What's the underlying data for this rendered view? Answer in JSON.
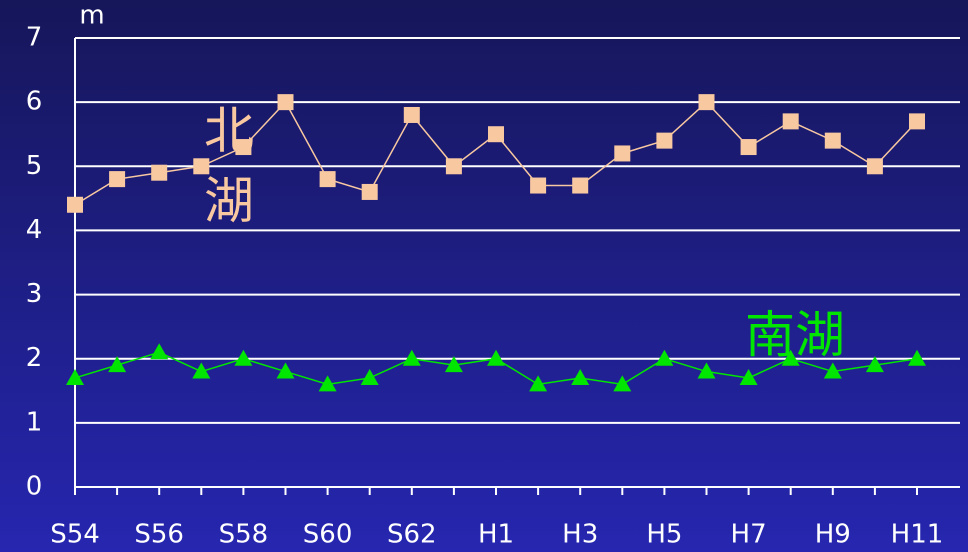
{
  "chart_data": {
    "type": "line",
    "y_label": "m",
    "categories": [
      "S54",
      null,
      "S56",
      null,
      "S58",
      null,
      "S60",
      null,
      "S62",
      null,
      "H1",
      null,
      "H3",
      null,
      "H5",
      null,
      "H7",
      null,
      "H9",
      null,
      "H11"
    ],
    "series": [
      {
        "name": "北湖",
        "color": "#f8c8a0",
        "marker": "square",
        "values": [
          4.4,
          4.8,
          4.9,
          5.0,
          5.3,
          6.0,
          4.8,
          4.6,
          5.8,
          5.0,
          5.5,
          4.7,
          4.7,
          5.2,
          5.4,
          6.0,
          5.3,
          5.7,
          5.4,
          5.0,
          5.7
        ]
      },
      {
        "name": "南湖",
        "color": "#00e600",
        "marker": "triangle",
        "values": [
          1.7,
          1.9,
          2.1,
          1.8,
          2.0,
          1.8,
          1.6,
          1.7,
          2.0,
          1.9,
          2.0,
          1.6,
          1.7,
          1.6,
          2.0,
          1.8,
          1.7,
          2.0,
          1.8,
          1.9,
          2.0
        ]
      }
    ],
    "ylim": [
      0,
      7
    ],
    "yticks": [
      0,
      1,
      2,
      3,
      4,
      5,
      6,
      7
    ],
    "grid": true
  }
}
